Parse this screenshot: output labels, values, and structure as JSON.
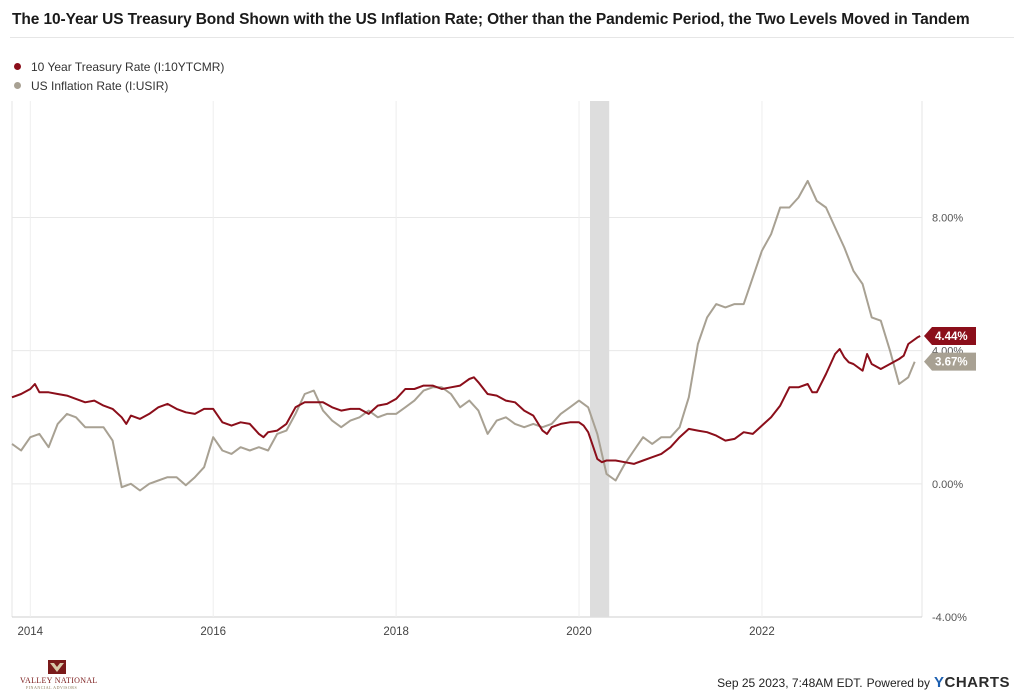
{
  "title": "The 10-Year US Treasury Bond Shown with the US Inflation Rate; Other than the Pandemic Period, the Two Levels Moved in Tandem",
  "footer": {
    "timestamp": "Sep 25 2023, 7:48AM EDT.",
    "powered_by": "Powered by",
    "brand_y": "Y",
    "brand_rest": "CHARTS"
  },
  "logo": {
    "name": "VALLEY NATIONAL",
    "sub": "FINANCIAL ADVISORS"
  },
  "chart_data": {
    "type": "line",
    "title": "The 10-Year US Treasury Bond Shown with the US Inflation Rate; Other than the Pandemic Period, the Two Levels Moved in Tandem",
    "xlabel": "",
    "ylabel": "",
    "xlim": [
      2013.8,
      2023.75
    ],
    "ylim": [
      -4,
      11.5
    ],
    "y_ticks": [
      {
        "value": 8,
        "label": "8.00%"
      },
      {
        "value": 4,
        "label": "4.00%"
      },
      {
        "value": 0,
        "label": "0.00%"
      },
      {
        "value": -4,
        "label": "-4.00%"
      }
    ],
    "x_ticks": [
      {
        "value": 2014,
        "label": "2014"
      },
      {
        "value": 2016,
        "label": "2016"
      },
      {
        "value": 2018,
        "label": "2018"
      },
      {
        "value": 2020,
        "label": "2020"
      },
      {
        "value": 2022,
        "label": "2022"
      }
    ],
    "y_axis_side": "right",
    "grid": true,
    "recession_band": {
      "start": 2020.12,
      "end": 2020.33,
      "color": "#dddddd"
    },
    "series": [
      {
        "name": "10 Year Treasury Rate (I:10YTCMR)",
        "color": "#8b0e1a",
        "end_label": "4.44%",
        "points": [
          [
            2013.8,
            2.6
          ],
          [
            2013.9,
            2.7
          ],
          [
            2014.0,
            2.85
          ],
          [
            2014.05,
            3.0
          ],
          [
            2014.1,
            2.75
          ],
          [
            2014.2,
            2.75
          ],
          [
            2014.3,
            2.7
          ],
          [
            2014.4,
            2.65
          ],
          [
            2014.5,
            2.55
          ],
          [
            2014.6,
            2.45
          ],
          [
            2014.7,
            2.5
          ],
          [
            2014.8,
            2.35
          ],
          [
            2014.9,
            2.25
          ],
          [
            2015.0,
            2.0
          ],
          [
            2015.05,
            1.8
          ],
          [
            2015.1,
            2.05
          ],
          [
            2015.2,
            1.95
          ],
          [
            2015.3,
            2.1
          ],
          [
            2015.4,
            2.3
          ],
          [
            2015.5,
            2.4
          ],
          [
            2015.6,
            2.25
          ],
          [
            2015.7,
            2.15
          ],
          [
            2015.8,
            2.1
          ],
          [
            2015.9,
            2.25
          ],
          [
            2016.0,
            2.25
          ],
          [
            2016.1,
            1.85
          ],
          [
            2016.2,
            1.75
          ],
          [
            2016.3,
            1.85
          ],
          [
            2016.4,
            1.8
          ],
          [
            2016.5,
            1.5
          ],
          [
            2016.55,
            1.4
          ],
          [
            2016.6,
            1.55
          ],
          [
            2016.7,
            1.6
          ],
          [
            2016.8,
            1.8
          ],
          [
            2016.9,
            2.3
          ],
          [
            2017.0,
            2.45
          ],
          [
            2017.1,
            2.45
          ],
          [
            2017.2,
            2.45
          ],
          [
            2017.3,
            2.3
          ],
          [
            2017.4,
            2.2
          ],
          [
            2017.5,
            2.25
          ],
          [
            2017.6,
            2.25
          ],
          [
            2017.7,
            2.1
          ],
          [
            2017.8,
            2.35
          ],
          [
            2017.9,
            2.4
          ],
          [
            2018.0,
            2.55
          ],
          [
            2018.1,
            2.85
          ],
          [
            2018.2,
            2.85
          ],
          [
            2018.3,
            2.95
          ],
          [
            2018.4,
            2.95
          ],
          [
            2018.5,
            2.85
          ],
          [
            2018.6,
            2.9
          ],
          [
            2018.7,
            2.95
          ],
          [
            2018.8,
            3.15
          ],
          [
            2018.85,
            3.2
          ],
          [
            2018.9,
            3.05
          ],
          [
            2019.0,
            2.7
          ],
          [
            2019.1,
            2.65
          ],
          [
            2019.2,
            2.5
          ],
          [
            2019.3,
            2.45
          ],
          [
            2019.4,
            2.2
          ],
          [
            2019.5,
            2.05
          ],
          [
            2019.6,
            1.6
          ],
          [
            2019.65,
            1.5
          ],
          [
            2019.7,
            1.7
          ],
          [
            2019.8,
            1.8
          ],
          [
            2019.9,
            1.85
          ],
          [
            2020.0,
            1.85
          ],
          [
            2020.05,
            1.75
          ],
          [
            2020.1,
            1.55
          ],
          [
            2020.15,
            1.15
          ],
          [
            2020.2,
            0.75
          ],
          [
            2020.25,
            0.65
          ],
          [
            2020.3,
            0.7
          ],
          [
            2020.4,
            0.7
          ],
          [
            2020.5,
            0.65
          ],
          [
            2020.6,
            0.6
          ],
          [
            2020.7,
            0.7
          ],
          [
            2020.8,
            0.8
          ],
          [
            2020.9,
            0.9
          ],
          [
            2021.0,
            1.1
          ],
          [
            2021.1,
            1.4
          ],
          [
            2021.2,
            1.65
          ],
          [
            2021.3,
            1.6
          ],
          [
            2021.4,
            1.55
          ],
          [
            2021.5,
            1.45
          ],
          [
            2021.6,
            1.3
          ],
          [
            2021.7,
            1.35
          ],
          [
            2021.8,
            1.55
          ],
          [
            2021.9,
            1.5
          ],
          [
            2022.0,
            1.75
          ],
          [
            2022.1,
            2.0
          ],
          [
            2022.2,
            2.35
          ],
          [
            2022.3,
            2.9
          ],
          [
            2022.4,
            2.9
          ],
          [
            2022.5,
            3.0
          ],
          [
            2022.55,
            2.75
          ],
          [
            2022.6,
            2.75
          ],
          [
            2022.7,
            3.3
          ],
          [
            2022.8,
            3.9
          ],
          [
            2022.85,
            4.05
          ],
          [
            2022.9,
            3.8
          ],
          [
            2022.95,
            3.65
          ],
          [
            2023.0,
            3.6
          ],
          [
            2023.1,
            3.4
          ],
          [
            2023.15,
            3.9
          ],
          [
            2023.2,
            3.6
          ],
          [
            2023.3,
            3.45
          ],
          [
            2023.4,
            3.6
          ],
          [
            2023.5,
            3.75
          ],
          [
            2023.55,
            3.85
          ],
          [
            2023.6,
            4.2
          ],
          [
            2023.7,
            4.4
          ],
          [
            2023.73,
            4.44
          ]
        ]
      },
      {
        "name": "US Inflation Rate (I:USIR)",
        "color": "#a8a193",
        "end_label": "3.67%",
        "points": [
          [
            2013.8,
            1.2
          ],
          [
            2013.9,
            1.0
          ],
          [
            2014.0,
            1.4
          ],
          [
            2014.1,
            1.5
          ],
          [
            2014.2,
            1.1
          ],
          [
            2014.3,
            1.8
          ],
          [
            2014.4,
            2.1
          ],
          [
            2014.5,
            2.0
          ],
          [
            2014.6,
            1.7
          ],
          [
            2014.7,
            1.7
          ],
          [
            2014.8,
            1.7
          ],
          [
            2014.9,
            1.3
          ],
          [
            2015.0,
            -0.1
          ],
          [
            2015.1,
            0.0
          ],
          [
            2015.2,
            -0.2
          ],
          [
            2015.3,
            0.0
          ],
          [
            2015.4,
            0.1
          ],
          [
            2015.5,
            0.2
          ],
          [
            2015.6,
            0.2
          ],
          [
            2015.7,
            -0.04
          ],
          [
            2015.8,
            0.2
          ],
          [
            2015.9,
            0.5
          ],
          [
            2016.0,
            1.4
          ],
          [
            2016.1,
            1.0
          ],
          [
            2016.2,
            0.9
          ],
          [
            2016.3,
            1.1
          ],
          [
            2016.4,
            1.0
          ],
          [
            2016.5,
            1.1
          ],
          [
            2016.6,
            1.0
          ],
          [
            2016.7,
            1.5
          ],
          [
            2016.8,
            1.6
          ],
          [
            2016.9,
            2.1
          ],
          [
            2017.0,
            2.7
          ],
          [
            2017.1,
            2.8
          ],
          [
            2017.2,
            2.2
          ],
          [
            2017.3,
            1.9
          ],
          [
            2017.4,
            1.7
          ],
          [
            2017.5,
            1.9
          ],
          [
            2017.6,
            2.0
          ],
          [
            2017.7,
            2.2
          ],
          [
            2017.8,
            2.0
          ],
          [
            2017.9,
            2.1
          ],
          [
            2018.0,
            2.1
          ],
          [
            2018.1,
            2.3
          ],
          [
            2018.2,
            2.5
          ],
          [
            2018.3,
            2.8
          ],
          [
            2018.4,
            2.9
          ],
          [
            2018.5,
            2.9
          ],
          [
            2018.6,
            2.7
          ],
          [
            2018.7,
            2.3
          ],
          [
            2018.8,
            2.5
          ],
          [
            2018.9,
            2.2
          ],
          [
            2019.0,
            1.5
          ],
          [
            2019.1,
            1.9
          ],
          [
            2019.2,
            2.0
          ],
          [
            2019.3,
            1.8
          ],
          [
            2019.4,
            1.7
          ],
          [
            2019.5,
            1.8
          ],
          [
            2019.6,
            1.7
          ],
          [
            2019.7,
            1.8
          ],
          [
            2019.8,
            2.1
          ],
          [
            2019.9,
            2.3
          ],
          [
            2020.0,
            2.5
          ],
          [
            2020.1,
            2.3
          ],
          [
            2020.2,
            1.5
          ],
          [
            2020.3,
            0.3
          ],
          [
            2020.4,
            0.1
          ],
          [
            2020.5,
            0.6
          ],
          [
            2020.6,
            1.0
          ],
          [
            2020.7,
            1.4
          ],
          [
            2020.8,
            1.2
          ],
          [
            2020.9,
            1.4
          ],
          [
            2021.0,
            1.4
          ],
          [
            2021.1,
            1.7
          ],
          [
            2021.2,
            2.6
          ],
          [
            2021.3,
            4.2
          ],
          [
            2021.4,
            5.0
          ],
          [
            2021.5,
            5.4
          ],
          [
            2021.6,
            5.3
          ],
          [
            2021.7,
            5.4
          ],
          [
            2021.8,
            5.4
          ],
          [
            2021.9,
            6.2
          ],
          [
            2022.0,
            7.0
          ],
          [
            2022.1,
            7.5
          ],
          [
            2022.2,
            8.3
          ],
          [
            2022.3,
            8.3
          ],
          [
            2022.4,
            8.6
          ],
          [
            2022.5,
            9.1
          ],
          [
            2022.6,
            8.5
          ],
          [
            2022.7,
            8.3
          ],
          [
            2022.8,
            7.7
          ],
          [
            2022.9,
            7.1
          ],
          [
            2023.0,
            6.4
          ],
          [
            2023.1,
            6.0
          ],
          [
            2023.2,
            5.0
          ],
          [
            2023.3,
            4.9
          ],
          [
            2023.4,
            4.0
          ],
          [
            2023.5,
            3.0
          ],
          [
            2023.6,
            3.2
          ],
          [
            2023.67,
            3.67
          ]
        ]
      }
    ]
  }
}
